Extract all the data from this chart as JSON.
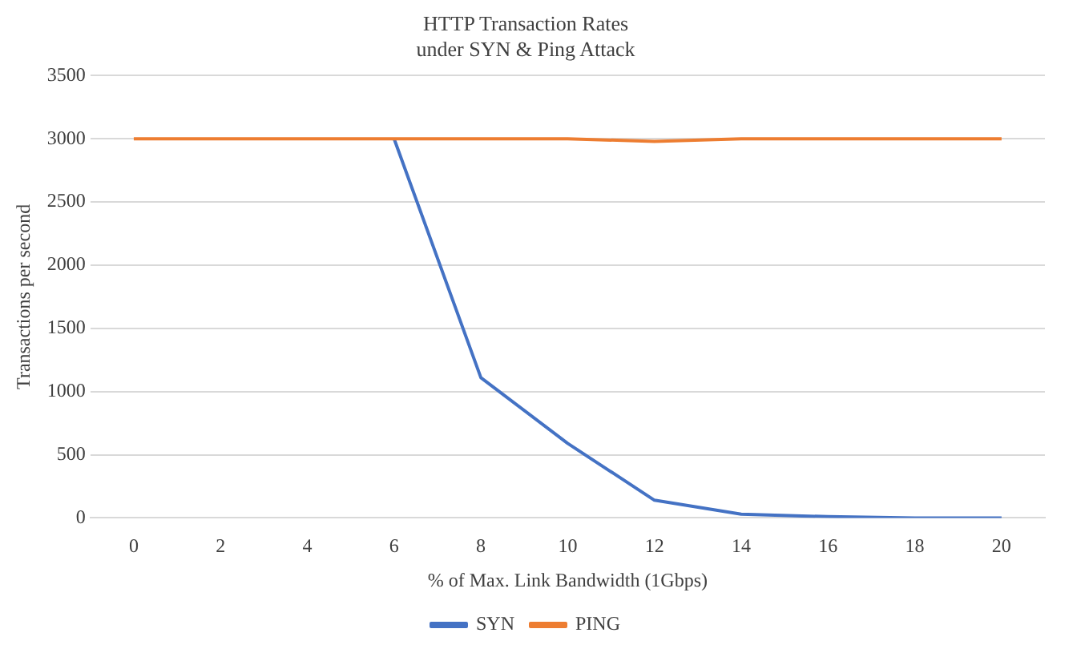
{
  "chart_data": {
    "type": "line",
    "title": "HTTP Transaction Rates",
    "subtitle": "under SYN & Ping Attack",
    "xlabel": "% of Max. Link Bandwidth (1Gbps)",
    "ylabel": "Transactions per second",
    "categories": [
      "0",
      "2",
      "4",
      "6",
      "8",
      "10",
      "12",
      "14",
      "16",
      "18",
      "20"
    ],
    "series": [
      {
        "name": "SYN",
        "color": "#4472c4",
        "values": [
          null,
          null,
          null,
          3000,
          1110,
          590,
          140,
          30,
          10,
          0,
          0
        ]
      },
      {
        "name": "PING",
        "color": "#ed7d31",
        "values": [
          3000,
          3000,
          3000,
          3000,
          3000,
          3000,
          2980,
          3000,
          3000,
          3000,
          3000
        ]
      }
    ],
    "ylim": [
      0,
      3500
    ],
    "yticks": [
      0,
      500,
      1000,
      1500,
      2000,
      2500,
      3000,
      3500
    ],
    "grid": "y",
    "legend": "bottom",
    "marker": "none",
    "line_style": "solid"
  }
}
